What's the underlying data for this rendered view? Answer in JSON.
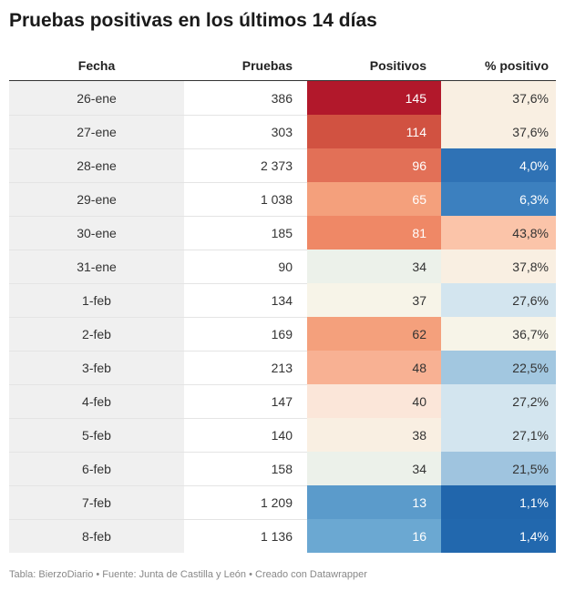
{
  "title": "Pruebas positivas en los últimos 14 días",
  "footer": "Tabla: BierzoDiario • Fuente: Junta de Castilla y León • Creado con Datawrapper",
  "chart_data": {
    "type": "table",
    "title": "Pruebas positivas en los últimos 14 días",
    "columns": [
      "Fecha",
      "Pruebas",
      "Positivos",
      "% positivo"
    ],
    "rows": [
      {
        "fecha": "26-ene",
        "pruebas": "386",
        "positivos": "145",
        "pct": "37,6%",
        "pos_bg": "#b2182b",
        "pos_fg": "#ffffff",
        "pct_bg": "#f9efe2",
        "pct_fg": "#333333"
      },
      {
        "fecha": "27-ene",
        "pruebas": "303",
        "positivos": "114",
        "pct": "37,6%",
        "pos_bg": "#d15241",
        "pos_fg": "#ffffff",
        "pct_bg": "#f9efe2",
        "pct_fg": "#333333"
      },
      {
        "fecha": "28-ene",
        "pruebas": "2 373",
        "positivos": "96",
        "pct": "4,0%",
        "pos_bg": "#e27057",
        "pos_fg": "#ffffff",
        "pct_bg": "#2f72b5",
        "pct_fg": "#ffffff"
      },
      {
        "fecha": "29-ene",
        "pruebas": "1 038",
        "positivos": "65",
        "pct": "6,3%",
        "pos_bg": "#f4a07c",
        "pos_fg": "#ffffff",
        "pct_bg": "#3c80bf",
        "pct_fg": "#ffffff"
      },
      {
        "fecha": "30-ene",
        "pruebas": "185",
        "positivos": "81",
        "pct": "43,8%",
        "pos_bg": "#ef8866",
        "pos_fg": "#ffffff",
        "pct_bg": "#fbc4a9",
        "pct_fg": "#333333"
      },
      {
        "fecha": "31-ene",
        "pruebas": "90",
        "positivos": "34",
        "pct": "37,8%",
        "pos_bg": "#ecf1ea",
        "pos_fg": "#333333",
        "pct_bg": "#f9efe2",
        "pct_fg": "#333333"
      },
      {
        "fecha": "1-feb",
        "pruebas": "134",
        "positivos": "37",
        "pct": "27,6%",
        "pos_bg": "#f7f4e8",
        "pos_fg": "#333333",
        "pct_bg": "#d3e5ef",
        "pct_fg": "#333333"
      },
      {
        "fecha": "2-feb",
        "pruebas": "169",
        "positivos": "62",
        "pct": "36,7%",
        "pos_bg": "#f4a07c",
        "pos_fg": "#333333",
        "pct_bg": "#f7f4e8",
        "pct_fg": "#333333"
      },
      {
        "fecha": "3-feb",
        "pruebas": "213",
        "positivos": "48",
        "pct": "22,5%",
        "pos_bg": "#f8b193",
        "pos_fg": "#333333",
        "pct_bg": "#a2c7e0",
        "pct_fg": "#333333"
      },
      {
        "fecha": "4-feb",
        "pruebas": "147",
        "positivos": "40",
        "pct": "27,2%",
        "pos_bg": "#fbe6d9",
        "pos_fg": "#333333",
        "pct_bg": "#d3e5ef",
        "pct_fg": "#333333"
      },
      {
        "fecha": "5-feb",
        "pruebas": "140",
        "positivos": "38",
        "pct": "27,1%",
        "pos_bg": "#f9efe2",
        "pos_fg": "#333333",
        "pct_bg": "#d3e5ef",
        "pct_fg": "#333333"
      },
      {
        "fecha": "6-feb",
        "pruebas": "158",
        "positivos": "34",
        "pct": "21,5%",
        "pos_bg": "#ecf1ea",
        "pos_fg": "#333333",
        "pct_bg": "#9fc4df",
        "pct_fg": "#333333"
      },
      {
        "fecha": "7-feb",
        "pruebas": "1 209",
        "positivos": "13",
        "pct": "1,1%",
        "pos_bg": "#5b9bcb",
        "pos_fg": "#ffffff",
        "pct_bg": "#2166ac",
        "pct_fg": "#ffffff"
      },
      {
        "fecha": "8-feb",
        "pruebas": "1 136",
        "positivos": "16",
        "pct": "1,4%",
        "pos_bg": "#6ba8d2",
        "pos_fg": "#ffffff",
        "pct_bg": "#2268ae",
        "pct_fg": "#ffffff"
      }
    ]
  }
}
